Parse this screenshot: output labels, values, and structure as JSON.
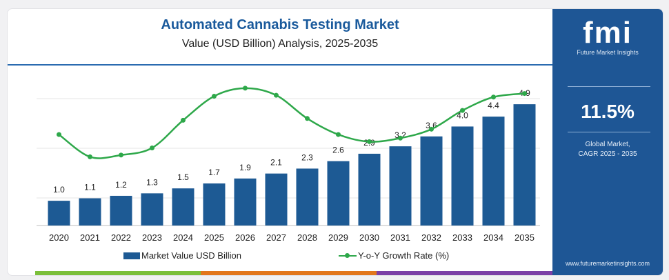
{
  "header": {
    "title": "Automated Cannabis Testing Market",
    "subtitle": "Value (USD Billion) Analysis, 2025-2035"
  },
  "sidebar": {
    "logo": "fmi",
    "logo_tagline": "Future Market Insights",
    "cagr_value": "11.5%",
    "cagr_label_line1": "Global Market,",
    "cagr_label_line2": "CAGR 2025 - 2035",
    "website": "www.futuremarketinsights.com"
  },
  "colors": {
    "bar": "#1d5a94",
    "line": "#2ea84a",
    "sidebar": "#1e5695",
    "title": "#1a5a9c"
  },
  "chart_data": {
    "type": "bar",
    "categories": [
      "2020",
      "2021",
      "2022",
      "2023",
      "2024",
      "2025",
      "2026",
      "2027",
      "2028",
      "2029",
      "2030",
      "2031",
      "2032",
      "2033",
      "2034",
      "2035"
    ],
    "series": [
      {
        "name": "Market Value USD Billion",
        "type": "bar",
        "values": [
          1.0,
          1.1,
          1.2,
          1.3,
          1.5,
          1.7,
          1.9,
          2.1,
          2.3,
          2.6,
          2.9,
          3.2,
          3.6,
          4.0,
          4.4,
          4.9
        ]
      },
      {
        "name": "Y-o-Y Growth Rate (%)",
        "type": "line",
        "values": [
          10.2,
          7.7,
          7.9,
          8.7,
          11.8,
          14.5,
          15.4,
          14.6,
          12.0,
          10.2,
          9.4,
          9.8,
          10.8,
          12.9,
          14.4,
          14.8
        ]
      }
    ],
    "data_labels": [
      "1.0",
      "1.1",
      "1.2",
      "1.3",
      "1.5",
      "1.7",
      "1.9",
      "2.1",
      "2.3",
      "2.6",
      "2.9",
      "3.2",
      "3.6",
      "4.0",
      "4.4",
      "4.9"
    ],
    "bar_ylim": [
      0,
      6
    ],
    "line_ylim": [
      0,
      18
    ],
    "legend": [
      "Market Value USD Billion",
      "Y-o-Y Growth Rate (%)"
    ],
    "legend_position": "bottom",
    "grid": true
  }
}
